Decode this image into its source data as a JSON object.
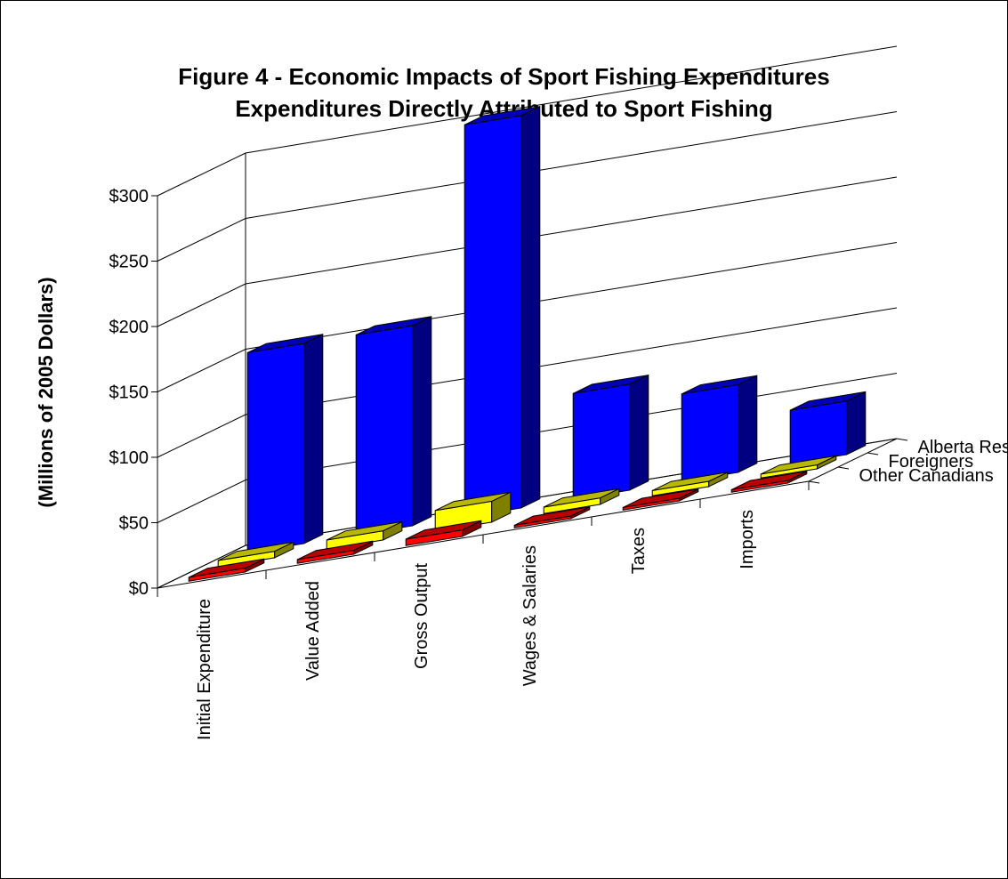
{
  "chart_data": {
    "type": "bar",
    "subtype": "3d-column",
    "title": "Figure 4 - Economic Impacts of Sport Fishing Expenditures",
    "subtitle": "Expenditures Directly Attributed to Sport Fishing",
    "ylabel": "(Millions of 2005 Dollars)",
    "xlabel": "",
    "ylim": [
      0,
      300
    ],
    "yticks": [
      "$0",
      "$50",
      "$100",
      "$150",
      "$200",
      "$250",
      "$300"
    ],
    "grid": true,
    "categories": [
      "Initial Expenditure",
      "Value Added",
      "Gross Output",
      "Wages & Salaries",
      "Taxes",
      "Imports"
    ],
    "series": [
      {
        "name": "Alberta Residents",
        "color": "#0000FF",
        "values": [
          153,
          153,
          300,
          81,
          67,
          41
        ]
      },
      {
        "name": "Foreigners",
        "color": "#FFFF00",
        "values": [
          5,
          7,
          16,
          5,
          4,
          3
        ]
      },
      {
        "name": "Other Canadians",
        "color": "#FF0000",
        "values": [
          3,
          3,
          5,
          2,
          2,
          2
        ]
      }
    ]
  }
}
